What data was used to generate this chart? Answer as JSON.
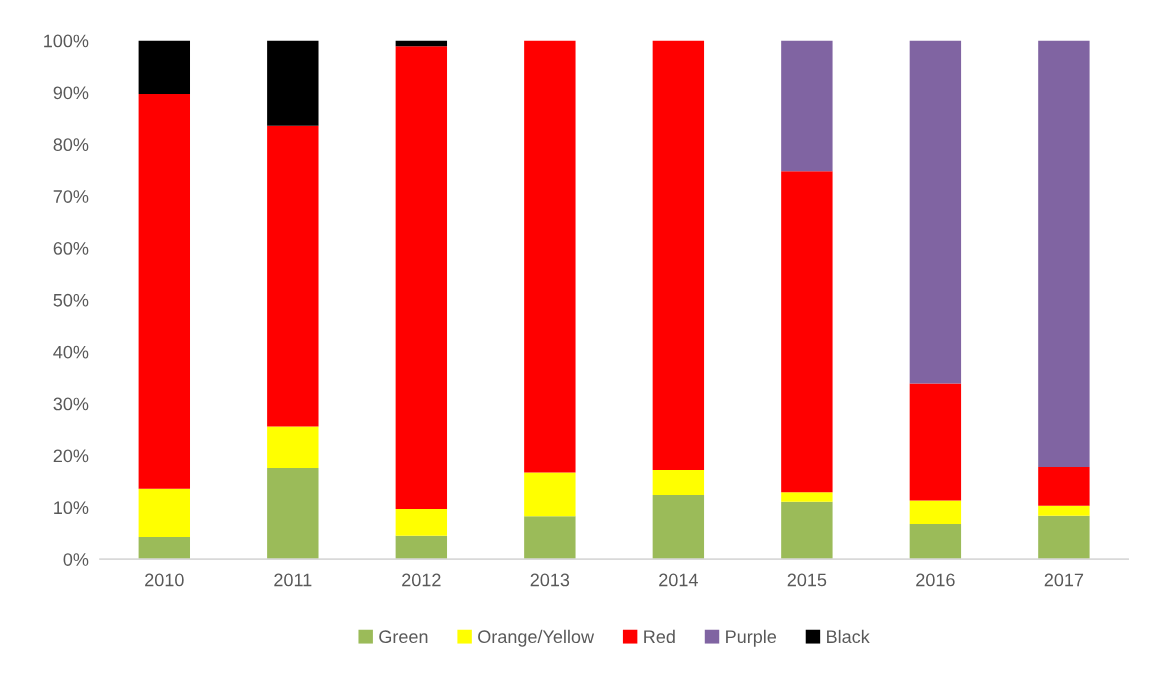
{
  "chart_data": {
    "type": "bar",
    "stacked": true,
    "categories": [
      "2010",
      "2011",
      "2012",
      "2013",
      "2014",
      "2015",
      "2016",
      "2017"
    ],
    "series": [
      {
        "name": "Green",
        "color": "#9bbb59",
        "values": [
          4.3,
          17.6,
          4.5,
          8.3,
          12.4,
          11.1,
          6.8,
          8.4
        ]
      },
      {
        "name": "Orange/Yellow",
        "color": "#ffff00",
        "values": [
          9.3,
          8.0,
          5.2,
          8.4,
          4.8,
          1.8,
          4.5,
          1.9
        ]
      },
      {
        "name": "Red",
        "color": "#ff0000",
        "values": [
          76.1,
          58.0,
          89.2,
          83.3,
          82.8,
          61.9,
          22.6,
          7.5
        ]
      },
      {
        "name": "Purple",
        "color": "#8064a2",
        "values": [
          0,
          0,
          0,
          0,
          0,
          25.2,
          66.1,
          82.2
        ]
      },
      {
        "name": "Black",
        "color": "#000000",
        "values": [
          10.3,
          16.4,
          1.1,
          0,
          0,
          0,
          0,
          0
        ]
      }
    ],
    "ylim": [
      0,
      100
    ],
    "yticks": [
      {
        "value": 0,
        "label": "0%"
      },
      {
        "value": 10,
        "label": "10%"
      },
      {
        "value": 20,
        "label": "20%"
      },
      {
        "value": 30,
        "label": "30%"
      },
      {
        "value": 40,
        "label": "40%"
      },
      {
        "value": 50,
        "label": "50%"
      },
      {
        "value": 60,
        "label": "60%"
      },
      {
        "value": 70,
        "label": "70%"
      },
      {
        "value": 80,
        "label": "80%"
      },
      {
        "value": 90,
        "label": "90%"
      },
      {
        "value": 100,
        "label": "100%"
      }
    ],
    "grid": false,
    "legend": "bottom"
  }
}
